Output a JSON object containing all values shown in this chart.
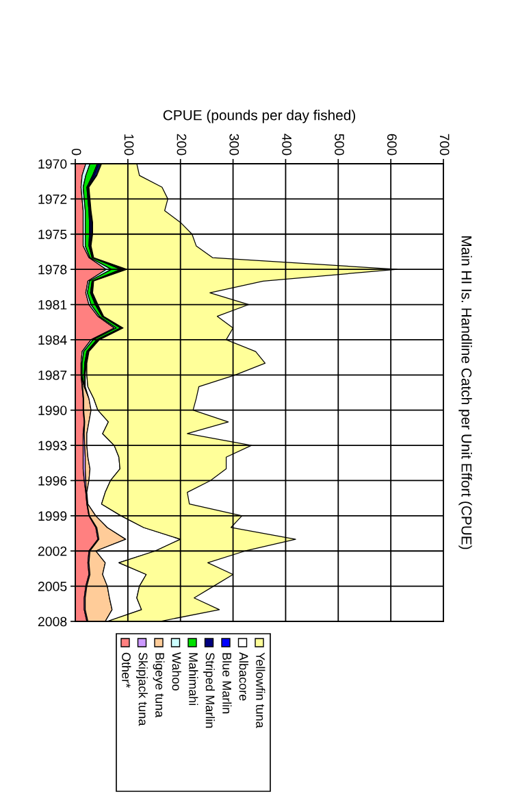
{
  "chart_data": {
    "type": "area",
    "stacked": true,
    "orientation": "horizontal",
    "title": "Main HI Is. Handline Catch per Unit Effort (CPUE)",
    "xlabel": "CPUE (pounds per day fished)",
    "categories": [
      "1970",
      null,
      null,
      "1972",
      null,
      null,
      "1975",
      null,
      null,
      "1978",
      null,
      null,
      "1981",
      null,
      null,
      "1984",
      null,
      null,
      "1987",
      null,
      null,
      "1990",
      null,
      null,
      "1993",
      null,
      null,
      "1996",
      null,
      null,
      "1999",
      null,
      null,
      "2002",
      null,
      null,
      "2005",
      null,
      null,
      "2008"
    ],
    "xlim": [
      0,
      700
    ],
    "xticks": [
      0,
      100,
      200,
      300,
      400,
      500,
      600,
      700
    ],
    "grid": true,
    "legend": "bottom",
    "series": [
      {
        "name": "Other*",
        "color": "#ff8080",
        "values": [
          20,
          13,
          11,
          13,
          15,
          15,
          15,
          15,
          26,
          59,
          24,
          20,
          26,
          43,
          74,
          30,
          13,
          11,
          11,
          13,
          15,
          15,
          17,
          15,
          15,
          15,
          15,
          17,
          20,
          22,
          26,
          39,
          43,
          26,
          24,
          26,
          20,
          17,
          17,
          22
        ]
      },
      {
        "name": "Skipjack tuna",
        "color": "#cc99ff",
        "values": [
          null,
          null,
          null,
          null,
          null,
          null,
          null,
          null,
          null,
          null,
          null,
          null,
          null,
          null,
          null,
          null,
          null,
          null,
          0,
          1,
          1,
          1,
          1,
          2,
          3,
          4,
          4,
          3,
          1,
          1,
          1,
          2,
          2,
          2,
          2,
          2,
          2,
          2,
          2,
          2
        ]
      },
      {
        "name": "Bigeye tuna",
        "color": "#ffcc99",
        "values": [
          null,
          null,
          null,
          null,
          null,
          null,
          null,
          null,
          null,
          null,
          null,
          null,
          null,
          null,
          null,
          null,
          null,
          null,
          0,
          3,
          10,
          14,
          8,
          5,
          4,
          5,
          9,
          6,
          1,
          1,
          12,
          20,
          51,
          11,
          31,
          24,
          39,
          46,
          51,
          33
        ]
      },
      {
        "name": "Wahoo",
        "color": "#ccffff",
        "values": [
          8,
          7,
          4,
          4,
          4,
          4,
          4,
          4,
          2,
          10,
          3,
          3,
          4,
          3,
          4,
          4,
          3,
          2,
          2,
          1,
          0,
          null,
          null,
          null,
          null,
          null,
          null,
          null,
          null,
          null,
          null,
          null,
          null,
          null,
          null,
          null,
          null,
          null,
          null,
          null
        ]
      },
      {
        "name": "Mahimahi",
        "color": "#00e000",
        "values": [
          14,
          13,
          7,
          7,
          7,
          8,
          8,
          7,
          4,
          18,
          5,
          6,
          8,
          5,
          8,
          7,
          6,
          5,
          4,
          1,
          0,
          null,
          null,
          null,
          null,
          null,
          null,
          null,
          null,
          null,
          null,
          null,
          null,
          null,
          null,
          null,
          null,
          null,
          null,
          null
        ]
      },
      {
        "name": "Striped Marlin",
        "color": "#000080",
        "values": [
          3,
          3,
          2,
          2,
          2,
          3,
          3,
          2,
          1,
          4,
          1,
          2,
          2,
          1,
          2,
          2,
          2,
          2,
          1,
          0,
          null,
          null,
          null,
          null,
          null,
          null,
          null,
          null,
          null,
          null,
          null,
          null,
          null,
          null,
          null,
          null,
          null,
          null,
          null,
          null
        ]
      },
      {
        "name": "Blue Marlin",
        "color": "#0000ff",
        "values": [
          3,
          3,
          1,
          1,
          1,
          2,
          2,
          1,
          1,
          4,
          1,
          1,
          2,
          1,
          2,
          2,
          1,
          1,
          1,
          0,
          null,
          null,
          null,
          null,
          null,
          null,
          null,
          null,
          null,
          null,
          null,
          null,
          null,
          null,
          null,
          null,
          null,
          null,
          null,
          null
        ]
      },
      {
        "name": "Albacore",
        "color": "#ffffff",
        "values": [
          2,
          2,
          1,
          1,
          1,
          1,
          1,
          1,
          1,
          3,
          1,
          1,
          1,
          1,
          1,
          1,
          1,
          1,
          3,
          5,
          9,
          13,
          37,
          30,
          52,
          59,
          57,
          41,
          35,
          26,
          48,
          69,
          104,
          113,
          26,
          83,
          61,
          52,
          56,
          4
        ]
      },
      {
        "name": "Yellowfin tuna",
        "color": "#ffff99",
        "values": [
          67,
          81,
          139,
          148,
          140,
          167,
          189,
          200,
          226,
          514,
          322,
          223,
          287,
          216,
          209,
          241,
          317,
          339,
          282,
          211,
          195,
          181,
          228,
          161,
          261,
          204,
          202,
          190,
          156,
          167,
          230,
          166,
          219,
          171,
          169,
          165,
          141,
          109,
          148,
          100
        ]
      }
    ]
  }
}
